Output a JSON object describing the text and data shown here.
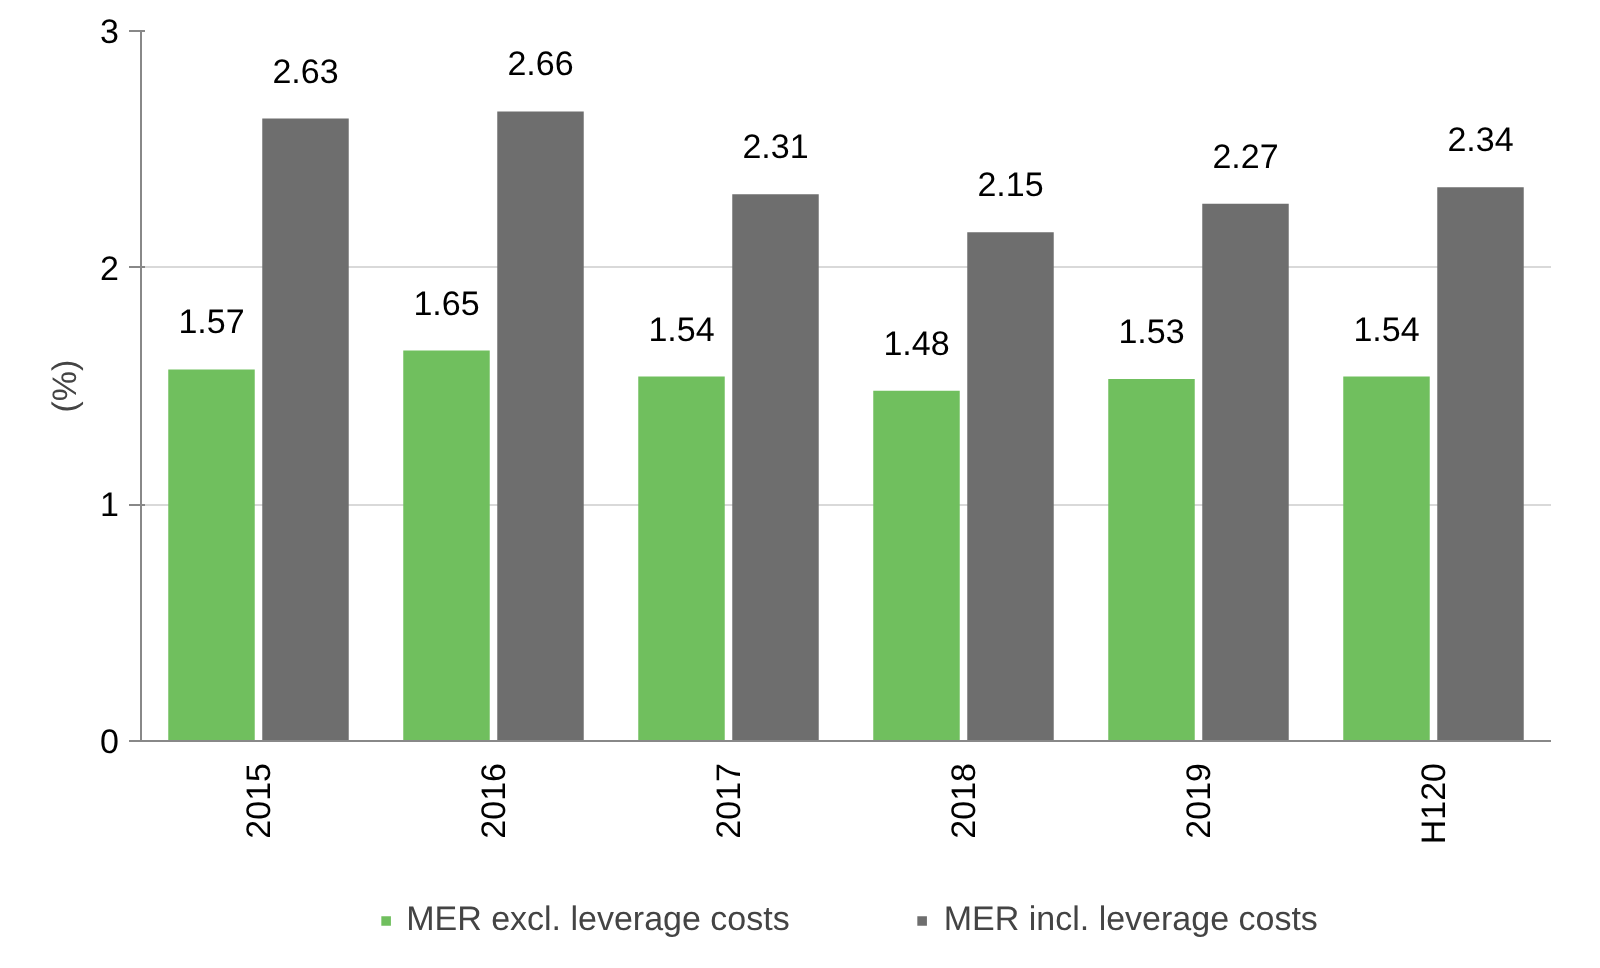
{
  "chart_data": {
    "type": "bar",
    "ylabel": "(%)",
    "categories": [
      "2015",
      "2016",
      "2017",
      "2018",
      "2019",
      "H120"
    ],
    "series": [
      {
        "name": "MER excl. leverage costs",
        "color": "#70bf5e",
        "values": [
          1.57,
          1.65,
          1.54,
          1.48,
          1.53,
          1.54
        ]
      },
      {
        "name": "MER incl. leverage costs",
        "color": "#6e6e6e",
        "values": [
          2.63,
          2.66,
          2.31,
          2.15,
          2.27,
          2.34
        ]
      }
    ],
    "ylim": [
      0,
      3
    ],
    "yticks": [
      0,
      1,
      2,
      3
    ],
    "grid": "y",
    "legend": "bottom",
    "data_labels": true
  }
}
